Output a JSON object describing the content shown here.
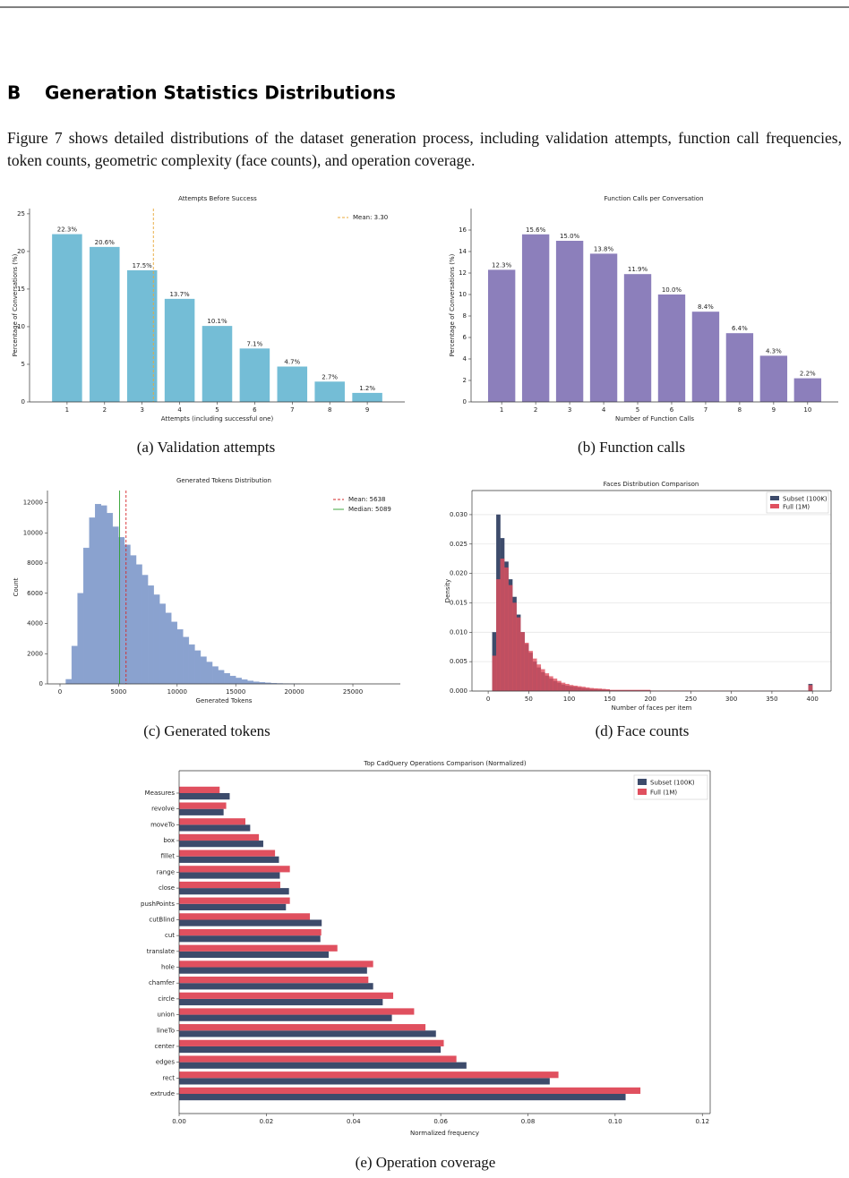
{
  "section": {
    "number": "B",
    "title": "Generation Statistics Distributions"
  },
  "paragraph": "Figure 7 shows detailed distributions of the dataset generation process, including validation attempts, function call frequencies, token counts, geometric complexity (face counts), and operation coverage.",
  "captions": [
    "(a) Validation attempts",
    "(b) Function calls",
    "(c) Generated tokens",
    "(d) Face counts",
    "(e) Operation coverage"
  ],
  "chart_data": [
    {
      "type": "bar",
      "title": "Attempts Before Success",
      "xlabel": "Attempts (including successful one)",
      "ylabel": "Percentage of Conversations (%)",
      "x": [
        1,
        2,
        3,
        4,
        5,
        6,
        7,
        8,
        9
      ],
      "values": [
        22.3,
        20.6,
        17.5,
        13.7,
        10.1,
        7.1,
        4.7,
        2.7,
        1.2
      ],
      "value_labels": [
        "22.3%",
        "20.6%",
        "17.5%",
        "13.7%",
        "10.1%",
        "7.1%",
        "4.7%",
        "2.7%",
        "1.2%"
      ],
      "color": "#74bdd6",
      "xlim": [
        0,
        10
      ],
      "ylim": [
        0,
        25.7
      ],
      "yticks": [
        0,
        5,
        10,
        15,
        20,
        25
      ],
      "ref_lines": [
        {
          "name": "Mean: 3.30",
          "value": 3.3,
          "color": "#e8a838"
        }
      ],
      "legend": "upper right"
    },
    {
      "type": "bar",
      "title": "Function Calls per Conversation",
      "xlabel": "Number of Function Calls",
      "ylabel": "Percentage of Conversations (%)",
      "x": [
        1,
        2,
        3,
        4,
        5,
        6,
        7,
        8,
        9,
        10
      ],
      "values": [
        12.3,
        15.6,
        15.0,
        13.8,
        11.9,
        10.0,
        8.4,
        6.4,
        4.3,
        2.2
      ],
      "value_labels": [
        "12.3%",
        "15.6%",
        "15.0%",
        "13.8%",
        "11.9%",
        "10.0%",
        "8.4%",
        "6.4%",
        "4.3%",
        "2.2%"
      ],
      "color": "#8c7fbb",
      "xlim": [
        0.1,
        10.9
      ],
      "ylim": [
        0,
        18
      ],
      "yticks": [
        0,
        2,
        4,
        6,
        8,
        10,
        12,
        14,
        16
      ]
    },
    {
      "type": "histogram",
      "title": "Generated Tokens Distribution",
      "xlabel": "Generated Tokens",
      "ylabel": "Count",
      "bins": [
        500,
        1000,
        1500,
        2000,
        2500,
        3000,
        3500,
        4000,
        4500,
        5000,
        5500,
        6000,
        6500,
        7000,
        7500,
        8000,
        8500,
        9000,
        9500,
        10000,
        10500,
        11000,
        11500,
        12000,
        12500,
        13000,
        13500,
        14000,
        14500,
        15000,
        15500,
        16000,
        16500,
        17000,
        17500,
        18000,
        18500,
        19000,
        19500,
        20000,
        20500
      ],
      "values": [
        300,
        2500,
        6000,
        9000,
        11000,
        11900,
        11800,
        11300,
        10400,
        9700,
        9200,
        8500,
        7900,
        7200,
        6500,
        5900,
        5300,
        4700,
        4100,
        3600,
        3100,
        2600,
        2200,
        1800,
        1450,
        1150,
        900,
        700,
        520,
        390,
        280,
        200,
        140,
        100,
        70,
        45,
        30,
        20,
        12,
        8
      ],
      "color": "#8aa2cf",
      "xlim": [
        -1070,
        29050
      ],
      "ylim": [
        0,
        12800
      ],
      "xticks": [
        0,
        5000,
        10000,
        15000,
        20000,
        25000
      ],
      "yticks": [
        0,
        2000,
        4000,
        6000,
        8000,
        10000,
        12000
      ],
      "ref_lines": [
        {
          "name": "Mean: 5638",
          "value": 5638,
          "color": "#d62728"
        },
        {
          "name": "Median: 5089",
          "value": 5089,
          "color": "#2ca02c"
        }
      ],
      "legend": "upper right"
    },
    {
      "type": "histogram",
      "title": "Faces Distribution Comparison",
      "xlabel": "Number of faces per item",
      "ylabel": "Density",
      "bins": [
        5,
        10,
        15,
        20,
        25,
        30,
        35,
        40,
        45,
        50,
        55,
        60,
        65,
        70,
        75,
        80,
        85,
        90,
        95,
        100,
        105,
        110,
        115,
        120,
        125,
        130,
        135,
        140,
        145,
        150,
        200,
        250,
        300,
        350,
        395,
        400
      ],
      "series": [
        {
          "name": "Subset (100K)",
          "color": "#3d4b6b",
          "values": [
            0.01,
            0.03,
            0.026,
            0.022,
            0.019,
            0.016,
            0.013,
            0.01,
            0.008,
            0.0065,
            0.005,
            0.004,
            0.0032,
            0.0026,
            0.0021,
            0.0017,
            0.0014,
            0.0011,
            0.0009,
            0.0008,
            0.0007,
            0.0006,
            0.0005,
            0.0004,
            0.00035,
            0.0003,
            0.00027,
            0.00024,
            0.0002,
            0.00012,
            5e-05,
            2e-05,
            1e-05,
            5e-06,
            0.0012
          ]
        },
        {
          "name": "Full (1M)",
          "color": "#e0505f",
          "values": [
            0.006,
            0.019,
            0.0225,
            0.021,
            0.018,
            0.015,
            0.0125,
            0.01,
            0.0082,
            0.0068,
            0.0055,
            0.0045,
            0.0037,
            0.003,
            0.0025,
            0.0021,
            0.0017,
            0.0014,
            0.0012,
            0.001,
            0.0009,
            0.0008,
            0.0007,
            0.0006,
            0.0005,
            0.00045,
            0.0004,
            0.00035,
            0.0003,
            0.00018,
            7e-05,
            3e-05,
            1.5e-05,
            8e-06,
            0.001
          ]
        }
      ],
      "xlim": [
        -20,
        423
      ],
      "ylim": [
        0,
        0.0341
      ],
      "xticks": [
        0,
        50,
        100,
        150,
        200,
        250,
        300,
        350,
        400
      ],
      "yticks": [
        {
          "value": 0,
          "label": "0.000"
        },
        0.005,
        {
          "value": 0.01,
          "label": "0.010"
        },
        0.015,
        {
          "value": 0.02,
          "label": "0.020"
        },
        0.025,
        {
          "value": 0.03,
          "label": "0.030"
        }
      ],
      "grid": true,
      "legend": "upper right"
    },
    {
      "type": "hbar",
      "title": "Top CadQuery Operations Comparison (Normalized)",
      "xlabel": "Normalized frequency",
      "categories": [
        "Measures",
        "revolve",
        "moveTo",
        "box",
        "fillet",
        "range",
        "close",
        "pushPoints",
        "cutBlind",
        "cut",
        "translate",
        "hole",
        "chamfer",
        "circle",
        "union",
        "lineTo",
        "center",
        "edges",
        "rect",
        "extrude"
      ],
      "series": [
        {
          "name": "Subset (100K)",
          "color": "#3d4b6b",
          "values": [
            0.0116,
            0.0102,
            0.0163,
            0.0193,
            0.0229,
            0.0231,
            0.0252,
            0.0245,
            0.0327,
            0.0324,
            0.0343,
            0.0431,
            0.0445,
            0.0467,
            0.0488,
            0.0589,
            0.06,
            0.0659,
            0.085,
            0.1024
          ]
        },
        {
          "name": "Full (1M)",
          "color": "#e0505f",
          "values": [
            0.0093,
            0.0108,
            0.0152,
            0.0183,
            0.022,
            0.0254,
            0.0232,
            0.0254,
            0.03,
            0.0326,
            0.0363,
            0.0445,
            0.0434,
            0.0491,
            0.0539,
            0.0565,
            0.0607,
            0.0636,
            0.087,
            0.1058
          ]
        }
      ],
      "xlim": [
        0,
        0.1218
      ],
      "xticks": [
        {
          "value": 0,
          "label": "0.00"
        },
        0.02,
        0.04,
        0.06,
        0.08,
        {
          "value": 0.1,
          "label": "0.10"
        },
        0.12
      ],
      "legend": "upper right"
    }
  ]
}
